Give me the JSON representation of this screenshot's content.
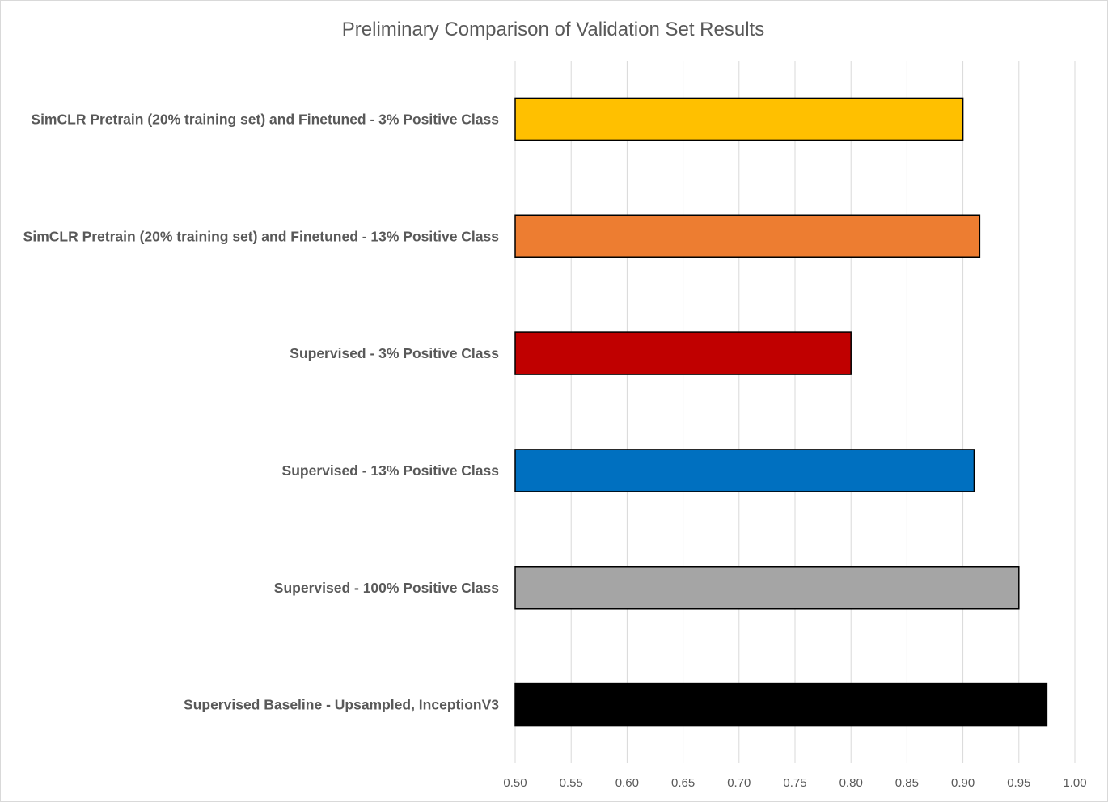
{
  "chart_data": {
    "type": "bar",
    "orientation": "horizontal",
    "title": "Preliminary Comparison of Validation Set Results",
    "xlabel": "",
    "ylabel": "",
    "xlim": [
      0.5,
      1.0
    ],
    "x_ticks": [
      "0.50",
      "0.55",
      "0.60",
      "0.65",
      "0.70",
      "0.75",
      "0.80",
      "0.85",
      "0.90",
      "0.95",
      "1.00"
    ],
    "grid": true,
    "legend": "none",
    "categories": [
      "SimCLR Pretrain (20% training set) and Finetuned - 3% Positive Class",
      "SimCLR Pretrain (20% training set) and Finetuned - 13% Positive Class",
      "Supervised - 3% Positive Class",
      "Supervised - 13% Positive Class",
      "Supervised - 100% Positive Class",
      "Supervised Baseline - Upsampled, InceptionV3"
    ],
    "values": [
      0.9,
      0.915,
      0.8,
      0.91,
      0.95,
      0.975
    ],
    "colors": [
      "#FFC000",
      "#ED7D31",
      "#C00000",
      "#0070C0",
      "#A5A5A5",
      "#000000"
    ]
  }
}
